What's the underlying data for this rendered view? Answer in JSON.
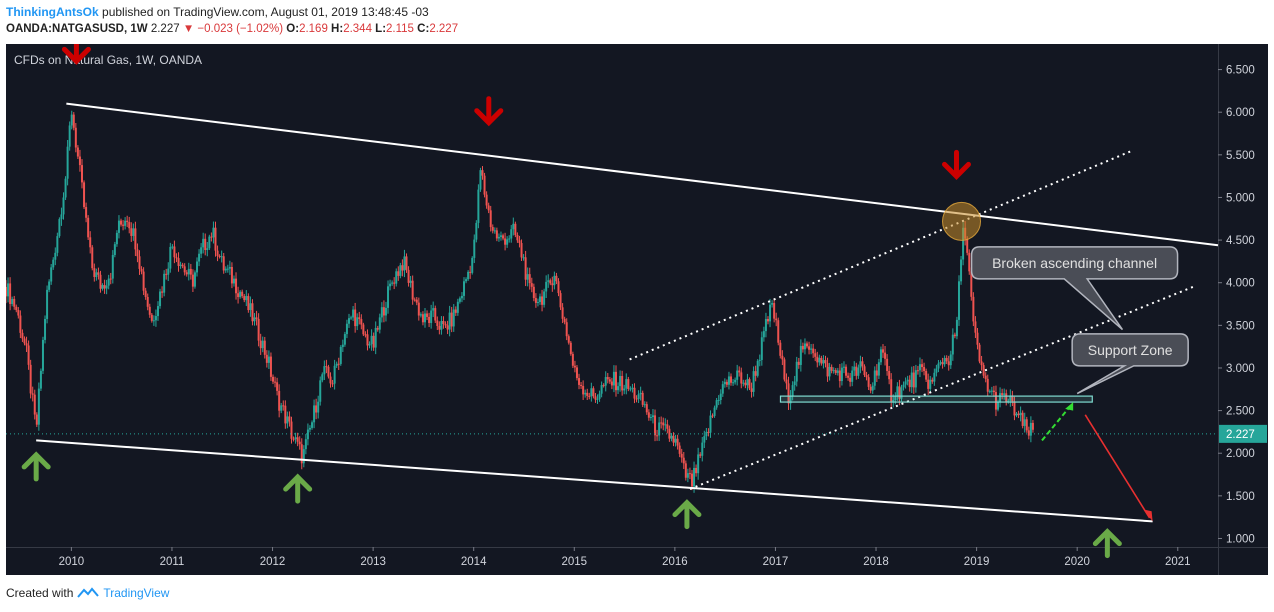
{
  "header": {
    "author": "ThinkingAntsOk",
    "published": "published on TradingView.com, August 01, 2019 13:48:45 -03",
    "symbol": "OANDA:NATGASUSD, 1W",
    "last": "2.227",
    "change": "−0.023 (−1.02%)",
    "o_label": "O:",
    "o": "2.169",
    "h_label": "H:",
    "h": "2.344",
    "l_label": "L:",
    "l": "2.115",
    "c_label": "C:",
    "c": "2.227"
  },
  "footer": {
    "created": "Created with",
    "brand": "TradingView"
  },
  "colors": {
    "background": "#131722",
    "up": "#26a69a",
    "down": "#ef5350",
    "arrow_up": "#6aaa48",
    "arrow_down": "#cc0000",
    "price_label": "#26a69a",
    "support_zone": "#7fdbd0"
  },
  "chart_data": {
    "type": "candlestick",
    "title": "CFDs on Natural Gas, 1W, OANDA",
    "xlabel": "",
    "ylabel": "",
    "x_ticks": [
      "2010",
      "2011",
      "2012",
      "2013",
      "2014",
      "2015",
      "2016",
      "2017",
      "2018",
      "2019",
      "2020",
      "2021"
    ],
    "y_ticks": [
      "1.000",
      "1.500",
      "2.000",
      "2.500",
      "3.000",
      "3.500",
      "4.000",
      "4.500",
      "5.000",
      "5.500",
      "6.000",
      "6.500"
    ],
    "xlim": [
      2009.35,
      2021.4
    ],
    "ylim": [
      0.9,
      6.8
    ],
    "last_price": "2.227",
    "series": [
      {
        "values": [
          [
            2009.35,
            3.95
          ],
          [
            2009.45,
            3.7
          ],
          [
            2009.55,
            3.2
          ],
          [
            2009.65,
            2.25
          ],
          [
            2009.75,
            3.8
          ],
          [
            2009.85,
            4.5
          ],
          [
            2009.95,
            5.3
          ],
          [
            2010.0,
            6.05
          ],
          [
            2010.05,
            5.6
          ],
          [
            2010.12,
            4.95
          ],
          [
            2010.2,
            4.2
          ],
          [
            2010.3,
            3.95
          ],
          [
            2010.4,
            4.15
          ],
          [
            2010.45,
            4.6
          ],
          [
            2010.55,
            4.8
          ],
          [
            2010.65,
            4.45
          ],
          [
            2010.72,
            3.95
          ],
          [
            2010.8,
            3.55
          ],
          [
            2010.9,
            3.95
          ],
          [
            2011.0,
            4.45
          ],
          [
            2011.08,
            4.25
          ],
          [
            2011.2,
            4.0
          ],
          [
            2011.3,
            4.4
          ],
          [
            2011.4,
            4.6
          ],
          [
            2011.5,
            4.2
          ],
          [
            2011.6,
            4.05
          ],
          [
            2011.7,
            3.85
          ],
          [
            2011.8,
            3.6
          ],
          [
            2011.88,
            3.35
          ],
          [
            2011.95,
            3.1
          ],
          [
            2012.05,
            2.65
          ],
          [
            2012.12,
            2.45
          ],
          [
            2012.2,
            2.2
          ],
          [
            2012.3,
            1.95
          ],
          [
            2012.4,
            2.4
          ],
          [
            2012.5,
            2.95
          ],
          [
            2012.6,
            2.85
          ],
          [
            2012.7,
            3.35
          ],
          [
            2012.8,
            3.65
          ],
          [
            2012.9,
            3.4
          ],
          [
            2013.0,
            3.25
          ],
          [
            2013.1,
            3.7
          ],
          [
            2013.2,
            4.05
          ],
          [
            2013.3,
            4.25
          ],
          [
            2013.4,
            3.85
          ],
          [
            2013.5,
            3.55
          ],
          [
            2013.6,
            3.6
          ],
          [
            2013.7,
            3.45
          ],
          [
            2013.8,
            3.6
          ],
          [
            2013.9,
            3.95
          ],
          [
            2014.0,
            4.35
          ],
          [
            2014.07,
            5.35
          ],
          [
            2014.1,
            5.1
          ],
          [
            2014.18,
            4.65
          ],
          [
            2014.25,
            4.5
          ],
          [
            2014.35,
            4.55
          ],
          [
            2014.4,
            4.6
          ],
          [
            2014.5,
            4.25
          ],
          [
            2014.55,
            3.9
          ],
          [
            2014.65,
            3.8
          ],
          [
            2014.75,
            3.95
          ],
          [
            2014.8,
            4.15
          ],
          [
            2014.85,
            3.8
          ],
          [
            2014.92,
            3.45
          ],
          [
            2015.0,
            2.95
          ],
          [
            2015.1,
            2.75
          ],
          [
            2015.2,
            2.65
          ],
          [
            2015.3,
            2.8
          ],
          [
            2015.4,
            2.85
          ],
          [
            2015.5,
            2.8
          ],
          [
            2015.6,
            2.7
          ],
          [
            2015.7,
            2.55
          ],
          [
            2015.8,
            2.3
          ],
          [
            2015.9,
            2.25
          ],
          [
            2016.0,
            2.15
          ],
          [
            2016.05,
            1.95
          ],
          [
            2016.1,
            1.75
          ],
          [
            2016.17,
            1.65
          ],
          [
            2016.25,
            1.95
          ],
          [
            2016.35,
            2.35
          ],
          [
            2016.45,
            2.75
          ],
          [
            2016.55,
            2.85
          ],
          [
            2016.65,
            2.9
          ],
          [
            2016.75,
            2.75
          ],
          [
            2016.85,
            3.2
          ],
          [
            2016.92,
            3.55
          ],
          [
            2016.97,
            3.75
          ],
          [
            2017.05,
            3.15
          ],
          [
            2017.12,
            2.65
          ],
          [
            2017.25,
            3.15
          ],
          [
            2017.35,
            3.3
          ],
          [
            2017.45,
            3.05
          ],
          [
            2017.55,
            2.95
          ],
          [
            2017.65,
            2.95
          ],
          [
            2017.75,
            2.9
          ],
          [
            2017.85,
            3.0
          ],
          [
            2017.95,
            2.75
          ],
          [
            2018.05,
            3.2
          ],
          [
            2018.15,
            2.7
          ],
          [
            2018.25,
            2.75
          ],
          [
            2018.35,
            2.85
          ],
          [
            2018.45,
            2.95
          ],
          [
            2018.55,
            2.8
          ],
          [
            2018.65,
            3.1
          ],
          [
            2018.72,
            3.1
          ],
          [
            2018.8,
            3.45
          ],
          [
            2018.85,
            4.4
          ],
          [
            2018.88,
            4.7
          ],
          [
            2018.92,
            4.2
          ],
          [
            2018.97,
            3.45
          ],
          [
            2019.05,
            2.95
          ],
          [
            2019.12,
            2.75
          ],
          [
            2019.2,
            2.6
          ],
          [
            2019.3,
            2.65
          ],
          [
            2019.38,
            2.5
          ],
          [
            2019.45,
            2.35
          ],
          [
            2019.5,
            2.25
          ],
          [
            2019.56,
            2.25
          ]
        ]
      }
    ]
  },
  "annotations": {
    "callout_channel": "Broken ascending channel",
    "callout_support": "Support Zone"
  }
}
